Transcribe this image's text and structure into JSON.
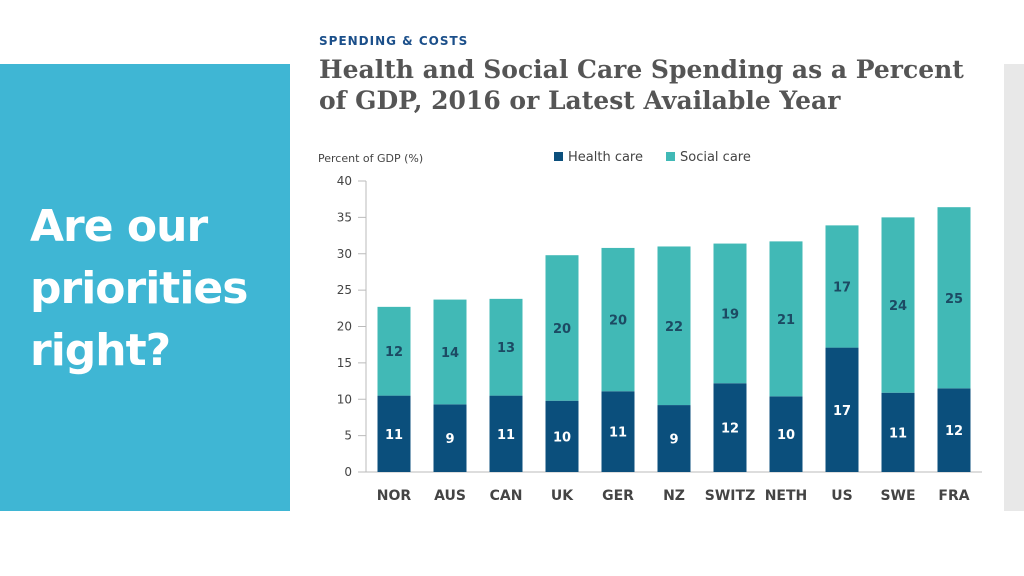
{
  "slide": {
    "title_lines": [
      "Are our",
      "priorities",
      "right?"
    ]
  },
  "figure": {
    "kicker": "SPENDING & COSTS",
    "title_lines": [
      "Health and Social Care Spending as a Percent",
      "of GDP, 2016 or Latest Available Year"
    ]
  },
  "colors": {
    "panel": "#3fb6d4",
    "health": "#0b4f7c",
    "social": "#41b9b6"
  },
  "chart_data": {
    "type": "bar",
    "stacked": true,
    "ylabel": "Percent of GDP (%)",
    "ylim": [
      0,
      40
    ],
    "yticks": [
      0,
      5,
      10,
      15,
      20,
      25,
      30,
      35,
      40
    ],
    "legend_position": "top",
    "categories": [
      "NOR",
      "AUS",
      "CAN",
      "UK",
      "GER",
      "NZ",
      "SWITZ",
      "NETH",
      "US",
      "SWE",
      "FRA"
    ],
    "series": [
      {
        "name": "Health care",
        "values": [
          10.5,
          9.3,
          10.5,
          9.8,
          11.1,
          9.2,
          12.2,
          10.4,
          17.1,
          10.9,
          11.5
        ],
        "labels": [
          "11",
          "9",
          "11",
          "10",
          "11",
          "9",
          "12",
          "10",
          "17",
          "11",
          "12"
        ]
      },
      {
        "name": "Social care",
        "values": [
          12.2,
          14.4,
          13.3,
          20.0,
          19.7,
          21.8,
          19.2,
          21.3,
          16.8,
          24.1,
          24.9
        ],
        "labels": [
          "12",
          "14",
          "13",
          "20",
          "20",
          "22",
          "19",
          "21",
          "17",
          "24",
          "25"
        ]
      }
    ]
  }
}
